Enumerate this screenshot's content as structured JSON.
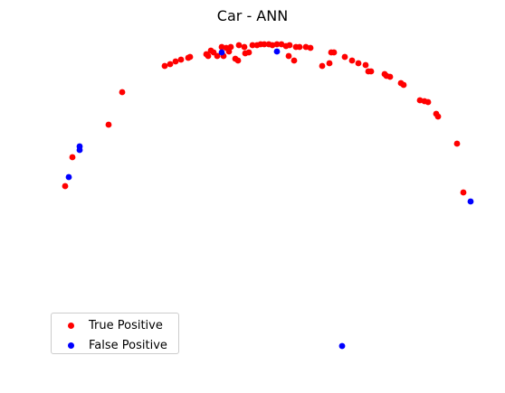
{
  "chart_data": {
    "type": "scatter",
    "title": "Car - ANN",
    "xlabel": "",
    "ylabel": "",
    "axes_visible": false,
    "grid": false,
    "legend_position": "lower-left",
    "series": [
      {
        "name": "True Positive",
        "color": "#ff0000",
        "points": [
          [
            72,
            206
          ],
          [
            80,
            174
          ],
          [
            120,
            138
          ],
          [
            135,
            102
          ],
          [
            182,
            73
          ],
          [
            188,
            71
          ],
          [
            194,
            68
          ],
          [
            200,
            66
          ],
          [
            208,
            64
          ],
          [
            210,
            63
          ],
          [
            228,
            60
          ],
          [
            230,
            62
          ],
          [
            233,
            56
          ],
          [
            236,
            58
          ],
          [
            240,
            62
          ],
          [
            245,
            52
          ],
          [
            247,
            62
          ],
          [
            250,
            53
          ],
          [
            255,
            52
          ],
          [
            253,
            57
          ],
          [
            260,
            65
          ],
          [
            263,
            67
          ],
          [
            264,
            50
          ],
          [
            270,
            52
          ],
          [
            271,
            59
          ],
          [
            275,
            58
          ],
          [
            279,
            50
          ],
          [
            284,
            50
          ],
          [
            288,
            49
          ],
          [
            292,
            49
          ],
          [
            297,
            49
          ],
          [
            301,
            50
          ],
          [
            306,
            49
          ],
          [
            311,
            49
          ],
          [
            316,
            51
          ],
          [
            320,
            50
          ],
          [
            319,
            62
          ],
          [
            325,
            67
          ],
          [
            327,
            52
          ],
          [
            331,
            52
          ],
          [
            338,
            52
          ],
          [
            343,
            53
          ],
          [
            356,
            73
          ],
          [
            364,
            70
          ],
          [
            366,
            58
          ],
          [
            369,
            58
          ],
          [
            381,
            63
          ],
          [
            389,
            67
          ],
          [
            396,
            70
          ],
          [
            404,
            72
          ],
          [
            407,
            79
          ],
          [
            410,
            79
          ],
          [
            425,
            82
          ],
          [
            427,
            84
          ],
          [
            431,
            85
          ],
          [
            443,
            92
          ],
          [
            446,
            94
          ],
          [
            464,
            111
          ],
          [
            469,
            112
          ],
          [
            473,
            113
          ],
          [
            482,
            126
          ],
          [
            484,
            129
          ],
          [
            505,
            159
          ],
          [
            512,
            213
          ]
        ]
      },
      {
        "name": "False Positive",
        "color": "#0000ff",
        "points": [
          [
            76,
            196
          ],
          [
            88,
            162
          ],
          [
            88,
            166
          ],
          [
            245,
            58
          ],
          [
            306,
            57
          ],
          [
            520,
            223
          ],
          [
            378,
            383
          ]
        ]
      }
    ]
  }
}
